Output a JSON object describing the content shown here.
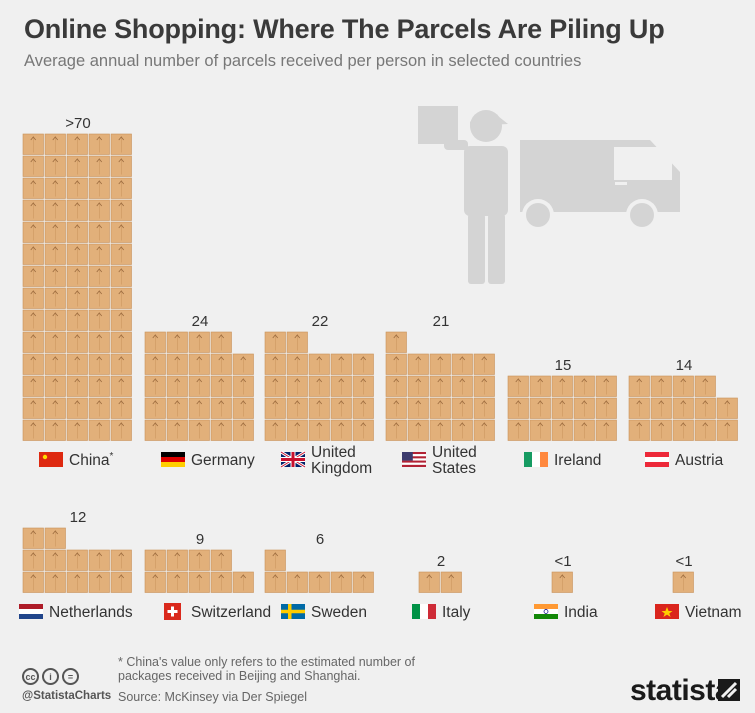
{
  "header": {
    "title": "Online Shopping: Where The Parcels Are Piling Up",
    "subtitle": "Average annual number of parcels received per person in selected countries"
  },
  "chart_data": {
    "type": "pictogram",
    "unit": "parcels per person per year",
    "rows": [
      [
        {
          "country": "China",
          "label": ">70",
          "value": 70,
          "footnote_mark": "*",
          "flag": "china"
        },
        {
          "country": "Germany",
          "label": "24",
          "value": 24,
          "flag": "germany"
        },
        {
          "country": "United Kingdom",
          "label": "22",
          "value": 22,
          "flag": "uk"
        },
        {
          "country": "United States",
          "label": "21",
          "value": 21,
          "flag": "usa"
        },
        {
          "country": "Ireland",
          "label": "15",
          "value": 15,
          "flag": "ireland"
        },
        {
          "country": "Austria",
          "label": "14",
          "value": 14,
          "flag": "austria"
        }
      ],
      [
        {
          "country": "Netherlands",
          "label": "12",
          "value": 12,
          "flag": "netherlands"
        },
        {
          "country": "Switzerland",
          "label": "9",
          "value": 9,
          "flag": "switzerland"
        },
        {
          "country": "Sweden",
          "label": "6",
          "value": 6,
          "flag": "sweden"
        },
        {
          "country": "Italy",
          "label": "2",
          "value": 2,
          "flag": "italy"
        },
        {
          "country": "India",
          "label": "<1",
          "value": 1,
          "flag": "india"
        },
        {
          "country": "Vietnam",
          "label": "<1",
          "value": 1,
          "flag": "vietnam"
        }
      ]
    ]
  },
  "footer": {
    "footnote": "* China's value only refers to the estimated number of packages received in Beijing and Shanghai.",
    "source": "Source: McKinsey via Der Spiegel",
    "handle": "@StatistaCharts",
    "brand": "statista",
    "license_icons": [
      "cc-icon",
      "by-icon",
      "nd-icon"
    ]
  },
  "colors": {
    "box": "#e2b07a",
    "box_edge": "#c8925a",
    "tape": "#9c6b3f",
    "illustration": "#d4d4d4"
  }
}
